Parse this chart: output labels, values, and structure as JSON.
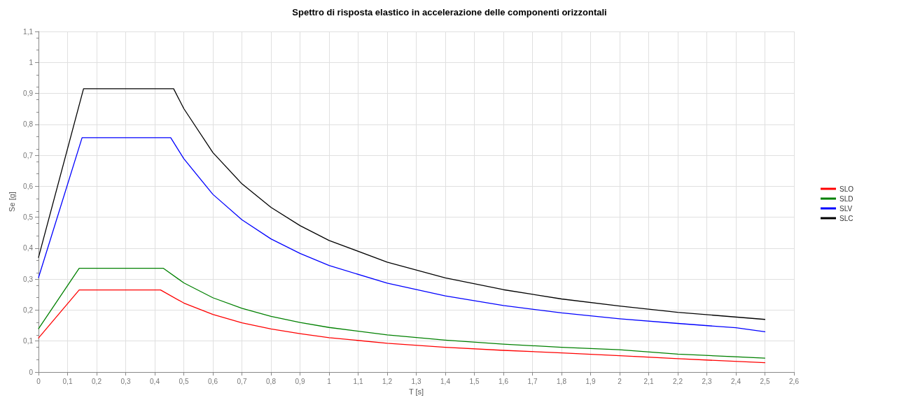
{
  "chart_data": {
    "type": "line",
    "title": "Spettro di risposta elastico in accelerazione delle componenti orizzontali",
    "xlabel": "T [s]",
    "ylabel": "Se [g]",
    "xlim": [
      0,
      2.6
    ],
    "ylim": [
      0,
      1.1
    ],
    "xticks": [
      0,
      {
        "value": 0.1,
        "label": "0,1"
      },
      {
        "value": 0.2,
        "label": "0,2"
      },
      {
        "value": 0.3,
        "label": "0,3"
      },
      {
        "value": 0.4,
        "label": "0,4"
      },
      {
        "value": 0.5,
        "label": "0,5"
      },
      {
        "value": 0.6,
        "label": "0,6"
      },
      {
        "value": 0.7,
        "label": "0,7"
      },
      {
        "value": 0.8,
        "label": "0,8"
      },
      {
        "value": 0.9,
        "label": "0,9"
      },
      1,
      {
        "value": 1.1,
        "label": "1,1"
      },
      {
        "value": 1.2,
        "label": "1,2"
      },
      {
        "value": 1.3,
        "label": "1,3"
      },
      {
        "value": 1.4,
        "label": "1,4"
      },
      {
        "value": 1.5,
        "label": "1,5"
      },
      {
        "value": 1.6,
        "label": "1,6"
      },
      {
        "value": 1.7,
        "label": "1,7"
      },
      {
        "value": 1.8,
        "label": "1,8"
      },
      {
        "value": 1.9,
        "label": "1,9"
      },
      2,
      {
        "value": 2.1,
        "label": "2,1"
      },
      {
        "value": 2.2,
        "label": "2,2"
      },
      {
        "value": 2.3,
        "label": "2,3"
      },
      {
        "value": 2.4,
        "label": "2,4"
      },
      {
        "value": 2.5,
        "label": "2,5"
      },
      {
        "value": 2.6,
        "label": "2,6"
      }
    ],
    "yticks": [
      0,
      {
        "value": 0.1,
        "label": "0,1"
      },
      {
        "value": 0.2,
        "label": "0,2"
      },
      {
        "value": 0.3,
        "label": "0,3"
      },
      {
        "value": 0.4,
        "label": "0,4"
      },
      {
        "value": 0.5,
        "label": "0,5"
      },
      {
        "value": 0.6,
        "label": "0,6"
      },
      {
        "value": 0.7,
        "label": "0,7"
      },
      {
        "value": 0.8,
        "label": "0,8"
      },
      {
        "value": 0.9,
        "label": "0,9"
      },
      1,
      {
        "value": 1.1,
        "label": "1,1"
      }
    ],
    "grid": true,
    "legend": "right",
    "marker": "none",
    "line_style": "solid",
    "series": [
      {
        "name": "SLO",
        "color": "#ff0000",
        "x": [
          0,
          0.14,
          0.42,
          0.5,
          0.6,
          0.7,
          0.8,
          0.9,
          1.0,
          1.2,
          1.4,
          1.6,
          1.8,
          2.0,
          2.2,
          2.5
        ],
        "values": [
          0.11,
          0.265,
          0.265,
          0.223,
          0.186,
          0.159,
          0.139,
          0.124,
          0.111,
          0.093,
          0.08,
          0.07,
          0.062,
          0.053,
          0.043,
          0.03
        ]
      },
      {
        "name": "SLD",
        "color": "#008000",
        "x": [
          0,
          0.14,
          0.43,
          0.5,
          0.6,
          0.7,
          0.8,
          0.9,
          1.0,
          1.2,
          1.4,
          1.6,
          1.8,
          2.0,
          2.2,
          2.5
        ],
        "values": [
          0.14,
          0.335,
          0.335,
          0.288,
          0.24,
          0.206,
          0.18,
          0.16,
          0.144,
          0.12,
          0.103,
          0.09,
          0.08,
          0.072,
          0.058,
          0.045
        ]
      },
      {
        "name": "SLV",
        "color": "#0000ff",
        "x": [
          0,
          0.15,
          0.455,
          0.5,
          0.6,
          0.7,
          0.8,
          0.9,
          1.0,
          1.2,
          1.4,
          1.6,
          1.8,
          2.0,
          2.2,
          2.4,
          2.5
        ],
        "values": [
          0.305,
          0.757,
          0.757,
          0.689,
          0.574,
          0.492,
          0.43,
          0.383,
          0.344,
          0.287,
          0.246,
          0.215,
          0.191,
          0.172,
          0.157,
          0.143,
          0.13
        ]
      },
      {
        "name": "SLC",
        "color": "#000000",
        "x": [
          0,
          0.155,
          0.465,
          0.5,
          0.6,
          0.7,
          0.8,
          0.9,
          1.0,
          1.2,
          1.4,
          1.6,
          1.8,
          2.0,
          2.2,
          2.5
        ],
        "values": [
          0.37,
          0.915,
          0.915,
          0.851,
          0.709,
          0.608,
          0.532,
          0.473,
          0.425,
          0.355,
          0.304,
          0.266,
          0.236,
          0.213,
          0.193,
          0.17
        ]
      }
    ]
  }
}
